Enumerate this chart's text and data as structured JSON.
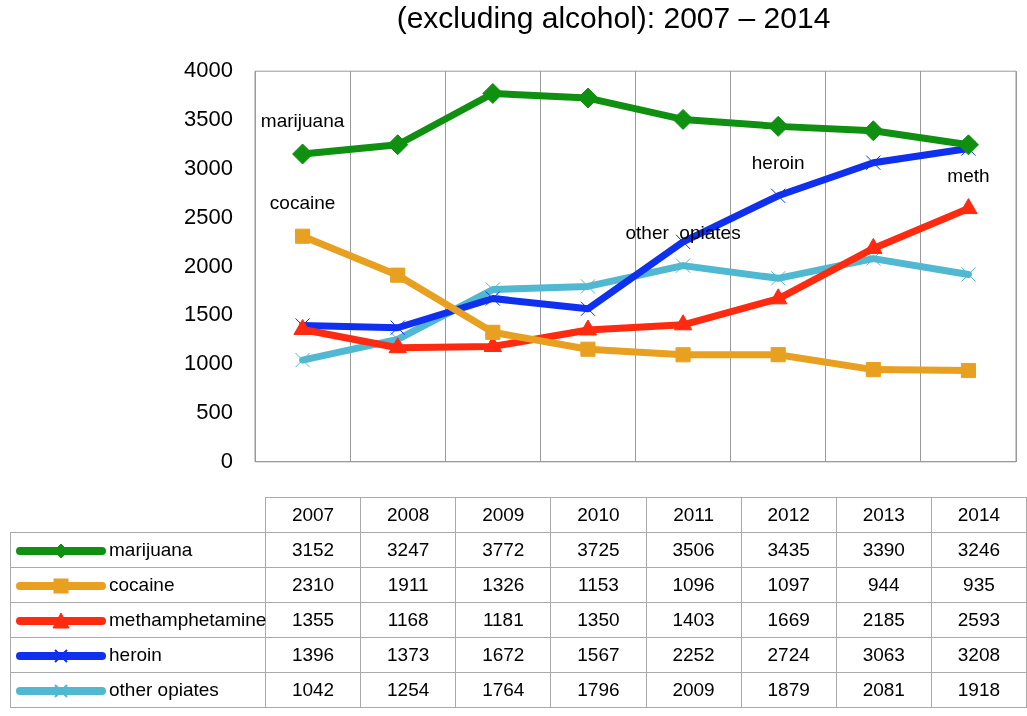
{
  "chart_data": {
    "type": "line",
    "title": "(excluding alcohol):  2007 – 2014",
    "categories": [
      "2007",
      "2008",
      "2009",
      "2010",
      "2011",
      "2012",
      "2013",
      "2014"
    ],
    "series": [
      {
        "name": "marijuana",
        "color": "#109010",
        "marker": "diamond",
        "values": [
          3152,
          3247,
          3772,
          3725,
          3506,
          3435,
          3390,
          3246
        ]
      },
      {
        "name": "cocaine",
        "color": "#e8a020",
        "marker": "square",
        "values": [
          2310,
          1911,
          1326,
          1153,
          1096,
          1097,
          944,
          935
        ]
      },
      {
        "name": "methamphetamine",
        "color": "#ff2a10",
        "marker": "triangle",
        "values": [
          1355,
          1168,
          1181,
          1350,
          1403,
          1669,
          2185,
          2593
        ]
      },
      {
        "name": "heroin",
        "color": "#1030f0",
        "marker": "cross",
        "values": [
          1396,
          1373,
          1672,
          1567,
          2252,
          2724,
          3063,
          3208
        ]
      },
      {
        "name": "other opiates",
        "color": "#50b8d0",
        "marker": "cross",
        "values": [
          1042,
          1254,
          1764,
          1796,
          2009,
          1879,
          2081,
          1918
        ]
      }
    ],
    "ylim": [
      0,
      4000
    ],
    "yticks": [
      0,
      500,
      1000,
      1500,
      2000,
      2500,
      3000,
      3500,
      4000
    ],
    "grid": "x",
    "data_labels": true,
    "legend": "bottom left",
    "line_style": "solid",
    "annotations": [
      {
        "text": "marijuana",
        "x": "2007",
        "y": 3152
      },
      {
        "text": "cocaine",
        "x": "2007",
        "y": 2310
      },
      {
        "text": "heroin",
        "x": "2012",
        "y": 2724
      },
      {
        "text": "other  opiates",
        "x": "2011",
        "y": 2009
      },
      {
        "text": "meth",
        "x": "2014",
        "y": 2593
      }
    ]
  }
}
